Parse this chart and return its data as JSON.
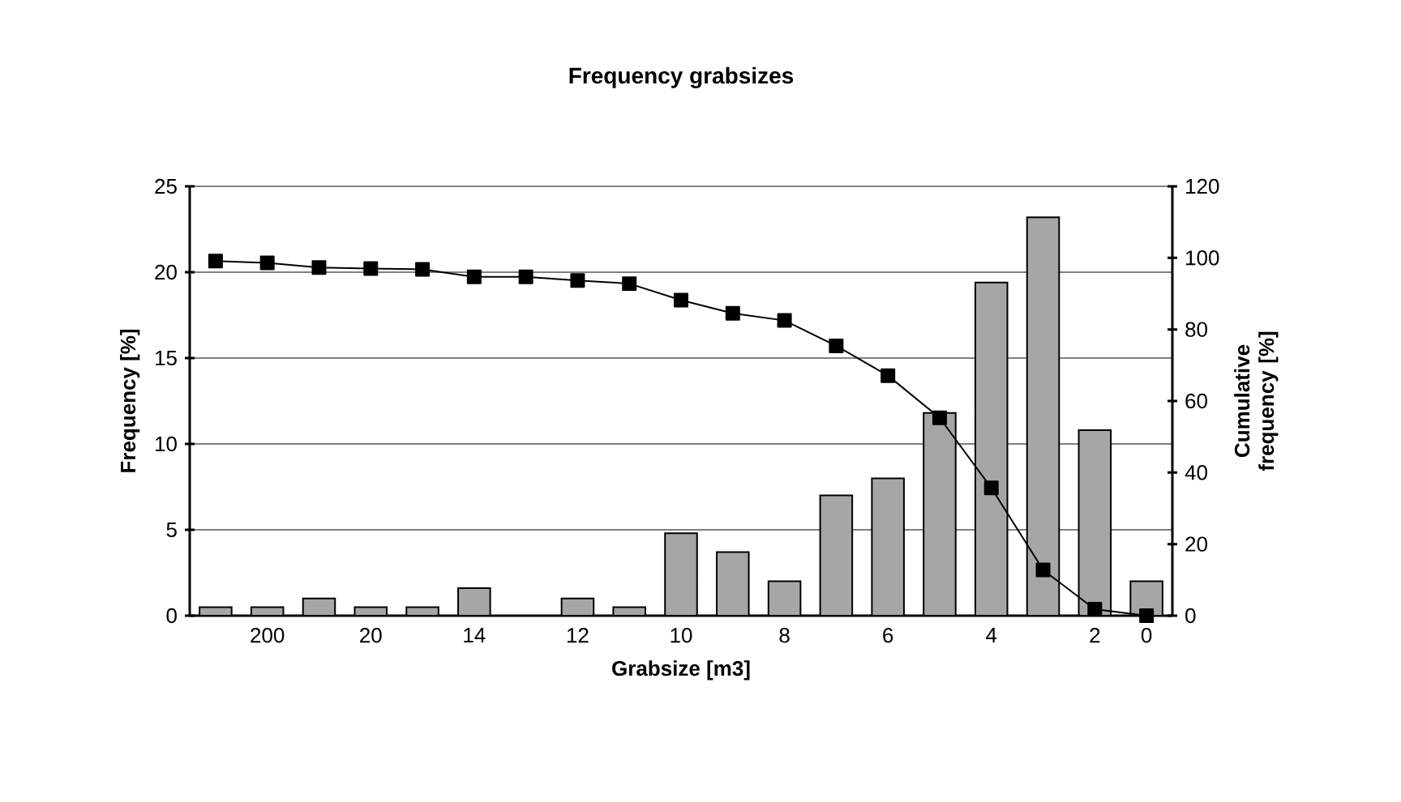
{
  "chart_data": {
    "type": "bar",
    "title": "Frequency grabsizes",
    "xlabel": "Grabsize [m3]",
    "ylabel": "Frequency [%]",
    "y2label": "Cumulative frequency [%]",
    "categories": [
      null,
      "200",
      null,
      "20",
      null,
      "14",
      null,
      "12",
      null,
      "10",
      null,
      "8",
      null,
      "6",
      null,
      "4",
      null,
      "2",
      "0"
    ],
    "series": [
      {
        "color": "#a6a6a6",
        "values": [
          0.5,
          0.5,
          1.0,
          0.5,
          0.5,
          1.6,
          0,
          1.0,
          0.5,
          4.8,
          3.7,
          2.0,
          7.0,
          8.0,
          11.8,
          19.4,
          23.2,
          10.8,
          2.0
        ]
      },
      {
        "type": "line",
        "axis": "y2",
        "color": "#000000",
        "marker": "square",
        "values": [
          99.1,
          98.6,
          97.3,
          97.0,
          96.8,
          94.7,
          94.7,
          93.7,
          92.8,
          88.2,
          84.5,
          82.5,
          75.4,
          67.1,
          55.3,
          35.7,
          12.8,
          1.8,
          0
        ]
      }
    ],
    "ylim": [
      0,
      25
    ],
    "yticks": [
      0,
      5,
      10,
      15,
      20,
      25
    ],
    "y2lim": [
      0,
      120
    ],
    "y2ticks": [
      0,
      20,
      40,
      60,
      80,
      100,
      120
    ],
    "grid": "y",
    "legend": false
  }
}
